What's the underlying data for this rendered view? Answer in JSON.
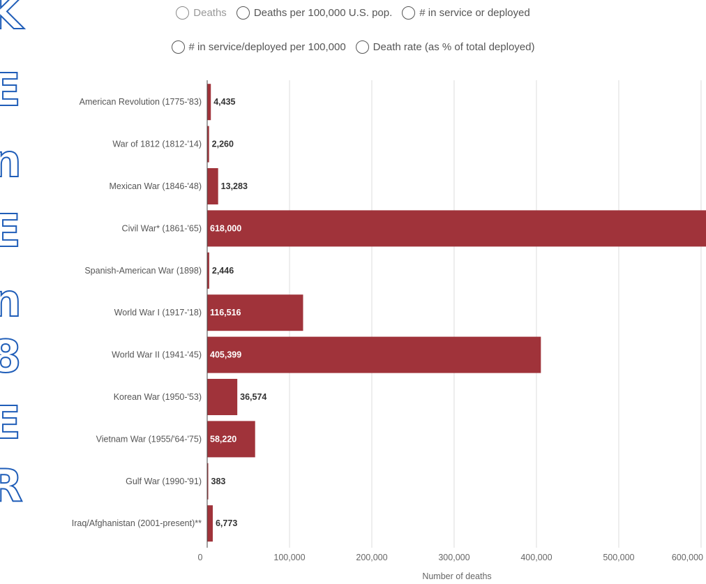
{
  "side_letters": [
    "K",
    "E",
    "n",
    "E",
    "n",
    "8",
    "E",
    "R"
  ],
  "controls": {
    "metric_options": [
      {
        "label": "Deaths",
        "dim": true
      },
      {
        "label": "Deaths per 100,000 U.S. pop.",
        "dim": false
      },
      {
        "label": "# in service or deployed",
        "dim": false
      },
      {
        "label": "# in service/deployed per 100,000",
        "dim": false
      },
      {
        "label": "Death rate (as % of total deployed)",
        "dim": false
      }
    ]
  },
  "colors": {
    "bar": "#a0333a",
    "grid": "#dddddd",
    "label_inside": "#ffffff",
    "label_outside": "#333333"
  },
  "chart_data": {
    "type": "bar",
    "orientation": "horizontal",
    "categories": [
      "American Revolution (1775-'83)",
      "War of 1812 (1812-'14)",
      "Mexican War (1846-'48)",
      "Civil War* (1861-'65)",
      "Spanish-American War (1898)",
      "World War I (1917-'18)",
      "World War II (1941-'45)",
      "Korean War (1950-'53)",
      "Vietnam War (1955/'64-'75)",
      "Gulf War (1990-'91)",
      "Iraq/Afghanistan (2001-present)**"
    ],
    "values": [
      4435,
      2260,
      13283,
      618000,
      2446,
      116516,
      405399,
      36574,
      58220,
      383,
      6773
    ],
    "value_labels": [
      "4,435",
      "2,260",
      "13,283",
      "618,000",
      "2,446",
      "116,516",
      "405,399",
      "36,574",
      "58,220",
      "383",
      "6,773"
    ],
    "xlabel": "Number of deaths",
    "xticks": [
      0,
      100000,
      200000,
      300000,
      400000,
      500000,
      600000
    ],
    "xtick_labels": [
      "0",
      "100,000",
      "200,000",
      "300,000",
      "400,000",
      "500,000",
      "600,000"
    ],
    "xlim": [
      0,
      606000
    ],
    "grid": true
  }
}
